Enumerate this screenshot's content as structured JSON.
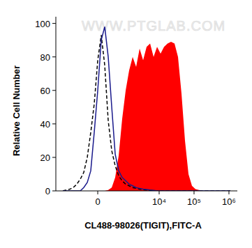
{
  "chart_data": {
    "type": "line",
    "log": "x",
    "x_label": "CL488-98026(TIGIT),FITC-A",
    "y_label": "Relative Cell Number",
    "annotations": [
      "WWW.PTGLAB.COM"
    ],
    "x": [
      -1723,
      -1072,
      -837,
      -649,
      -495,
      -369,
      -260,
      -166,
      -81,
      0,
      81,
      166,
      260,
      369,
      495,
      649,
      837,
      1072,
      1360,
      1723,
      2177,
      2746,
      3463,
      4364,
      5499,
      6922,
      8717,
      10976,
      13820,
      17397,
      21900,
      27600,
      34710,
      43700,
      55020,
      69300,
      87200,
      110000,
      138200,
      174000,
      219100,
      276000,
      347200,
      437000,
      693000,
      1098000
    ],
    "xlim": [
      -2750,
      1740000
    ],
    "xticks": [
      0,
      {
        "value": 10000,
        "label": "10⁴"
      },
      {
        "value": 100000,
        "label": "10⁵"
      },
      {
        "value": 1000000,
        "label": "10⁶"
      }
    ],
    "ylim": [
      0,
      104
    ],
    "yticks": [
      0,
      20,
      40,
      60,
      80,
      100
    ],
    "series": [
      {
        "type": "area",
        "color": "#ff0000",
        "values": [
          0,
          0,
          0,
          0,
          0,
          0,
          0,
          0,
          0,
          0,
          0,
          0,
          0.5,
          2,
          8,
          21,
          43,
          60,
          72,
          80,
          74,
          85,
          78,
          86,
          88,
          80,
          86,
          82,
          86,
          88,
          89,
          88,
          80,
          58,
          30,
          10,
          3,
          1,
          0.5,
          0,
          0,
          0,
          0,
          0,
          0,
          0
        ]
      },
      {
        "type": "line",
        "color": "#000000",
        "line_style": "dashed",
        "values": [
          0,
          1,
          2,
          4,
          7,
          11,
          20,
          35,
          52,
          78,
          93,
          75,
          42,
          24,
          15,
          9,
          6,
          4,
          3,
          2,
          1.5,
          1,
          0.8,
          0.5,
          0.3,
          0.2,
          0,
          0,
          0,
          0,
          0,
          0,
          0,
          0,
          0,
          0,
          0,
          0,
          0,
          0,
          0,
          0,
          0,
          0,
          0,
          0
        ]
      },
      {
        "type": "line",
        "color": "#1a1a8c",
        "line_style": "solid",
        "values": [
          0,
          0,
          0,
          0,
          0,
          2,
          5,
          12,
          35,
          60,
          90,
          98,
          80,
          50,
          22,
          12,
          8,
          6,
          4,
          3,
          2,
          1.5,
          1,
          0.8,
          0.5,
          0.3,
          0,
          0,
          0,
          0,
          0,
          0,
          0,
          0,
          0,
          0,
          0,
          0,
          0,
          0,
          0,
          0,
          0,
          0,
          0,
          0
        ]
      }
    ]
  }
}
